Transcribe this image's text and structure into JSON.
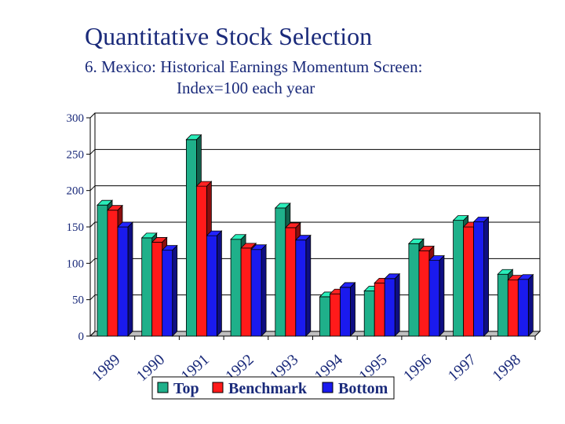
{
  "header": {
    "title": "Quantitative Stock Selection",
    "subtitle_line1": "6. Mexico: Historical Earnings Momentum Screen:",
    "subtitle_line2": "Index=100 each year"
  },
  "colors": {
    "top": "#1fb08a",
    "benchmark": "#ff1a1a",
    "bottom": "#1a1aee",
    "text": "#1a2a7a"
  },
  "chart_data": {
    "type": "bar",
    "title": "",
    "xlabel": "",
    "ylabel": "",
    "categories": [
      "1989",
      "1990",
      "1991",
      "1992",
      "1993",
      "1994",
      "1995",
      "1996",
      "1997",
      "1998"
    ],
    "series": [
      {
        "name": "Top",
        "values": [
          180,
          135,
          270,
          133,
          176,
          54,
          62,
          127,
          159,
          85
        ]
      },
      {
        "name": "Benchmark",
        "values": [
          173,
          129,
          206,
          121,
          149,
          58,
          73,
          117,
          150,
          77
        ]
      },
      {
        "name": "Bottom",
        "values": [
          150,
          118,
          138,
          119,
          132,
          67,
          79,
          104,
          157,
          78
        ]
      }
    ],
    "ylim": [
      0,
      300
    ],
    "yticks": [
      0,
      50,
      100,
      150,
      200,
      250,
      300
    ],
    "grid": true,
    "legend": "bottom-center"
  }
}
